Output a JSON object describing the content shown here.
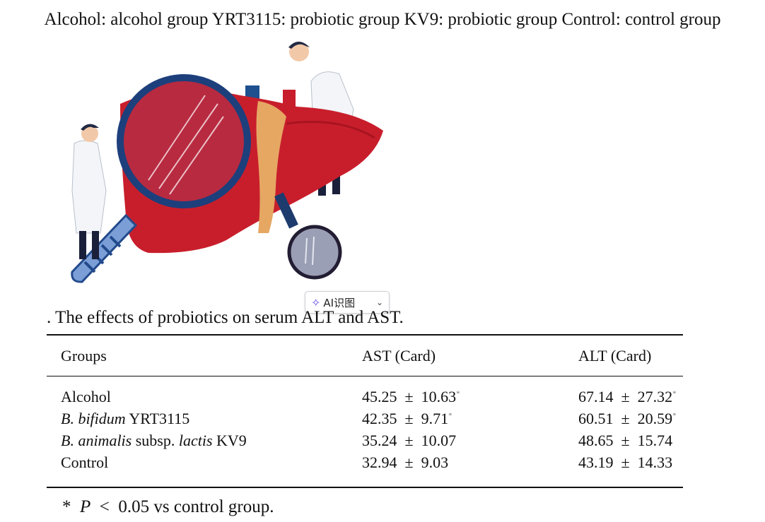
{
  "legend": "Alcohol: alcohol group YRT3115: probiotic group KV9: probiotic group Control: control group",
  "ai_chip": {
    "label": "AI识图",
    "icon": "sparkle-icon"
  },
  "caption": ". The effects of probiotics on serum ALT and AST.",
  "table": {
    "headers": [
      "Groups",
      "AST (Card)",
      "ALT (Card)"
    ],
    "pm": "±",
    "star": "*",
    "rows": [
      {
        "pre": "Alcohol",
        "em1": "",
        "mid": "",
        "em2": "",
        "post": "",
        "ast_mean": "45.25",
        "ast_sd": "10.63",
        "ast_sig": "*",
        "alt_mean": "67.14",
        "alt_sd": "27.32",
        "alt_sig": "*"
      },
      {
        "pre": "",
        "em1": "B. bifidum",
        "mid": " YRT3115",
        "em2": "",
        "post": "",
        "ast_mean": "42.35",
        "ast_sd": "9.71",
        "ast_sig": "*",
        "alt_mean": "60.51",
        "alt_sd": "20.59",
        "alt_sig": "*"
      },
      {
        "pre": "",
        "em1": "B. animalis",
        "mid": " subsp. ",
        "em2": "lactis",
        "post": " KV9",
        "ast_mean": "35.24",
        "ast_sd": "10.07",
        "ast_sig": "",
        "alt_mean": "48.65",
        "alt_sd": "15.74",
        "alt_sig": ""
      },
      {
        "pre": "Control",
        "em1": "",
        "mid": "",
        "em2": "",
        "post": "",
        "ast_mean": "32.94",
        "ast_sd": "9.03",
        "ast_sig": "",
        "alt_mean": "43.19",
        "alt_sd": "14.33",
        "alt_sig": ""
      }
    ]
  },
  "footnote": {
    "star": "*",
    "p": "P",
    "lt": "<",
    "value": "0.05",
    "text": "vs control group."
  },
  "colors": {
    "liver": "#c81e2c",
    "lens_ring": "#1d3f7c",
    "bile": "#e6a763"
  }
}
